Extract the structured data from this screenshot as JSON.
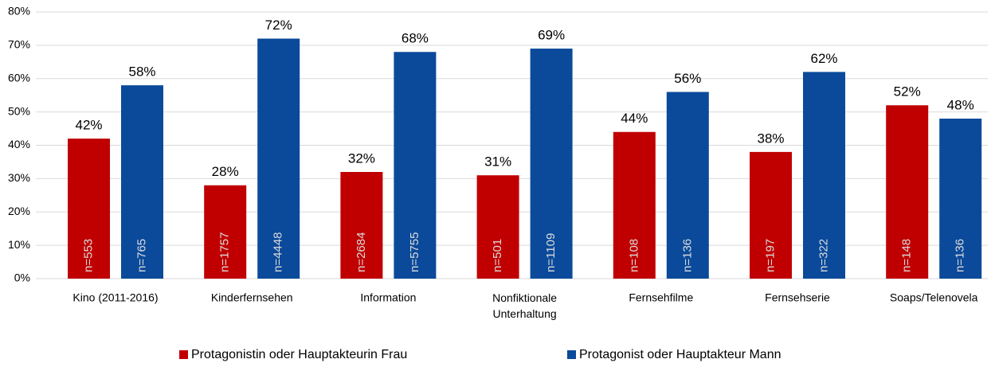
{
  "chart_data": {
    "type": "bar",
    "categories": [
      "Kino (2011-2016)",
      "Kinderfernsehen",
      "Information",
      "Nonfiktionale Unterhaltung",
      "Fernsehfilme",
      "Fernsehserie",
      "Soaps/Telenovela"
    ],
    "series": [
      {
        "name": "Protagonistin oder Hauptakteurin Frau",
        "color": "#c00000",
        "values": [
          42,
          28,
          32,
          31,
          44,
          38,
          52
        ],
        "value_labels": [
          "42%",
          "28%",
          "32%",
          "31%",
          "44%",
          "38%",
          "52%"
        ],
        "sample_labels": [
          "n=553",
          "n=1757",
          "n=2684",
          "n=501",
          "n=108",
          "n=197",
          "n=148"
        ]
      },
      {
        "name": "Protagonist oder Hauptakteur Mann",
        "color": "#0b4a9a",
        "values": [
          58,
          72,
          68,
          69,
          56,
          62,
          48
        ],
        "value_labels": [
          "58%",
          "72%",
          "68%",
          "69%",
          "56%",
          "62%",
          "48%"
        ],
        "sample_labels": [
          "n=765",
          "n=4448",
          "n=5755",
          "n=1109",
          "n=136",
          "n=322",
          "n=136"
        ]
      }
    ],
    "ylim": [
      0,
      80
    ],
    "yticks": [
      {
        "value": 0,
        "label": "0%"
      },
      {
        "value": 10,
        "label": "10%"
      },
      {
        "value": 20,
        "label": "20%"
      },
      {
        "value": 30,
        "label": "30%"
      },
      {
        "value": 40,
        "label": "40%"
      },
      {
        "value": 50,
        "label": "50%"
      },
      {
        "value": 60,
        "label": "60%"
      },
      {
        "value": 70,
        "label": "70%"
      },
      {
        "value": 80,
        "label": "80%"
      }
    ],
    "grid": true,
    "legend": "bottom"
  }
}
